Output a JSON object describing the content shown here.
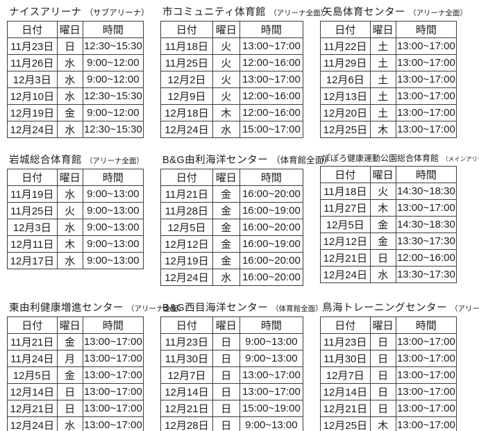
{
  "column_headers": {
    "date": "日付",
    "day": "曜日",
    "time": "時間"
  },
  "facilities": [
    {
      "name": "ナイスアリーナ",
      "note": "（サブアリーナ）",
      "rows": [
        {
          "date": "11月23日",
          "day": "日",
          "time": "12:30~15:30"
        },
        {
          "date": "11月26日",
          "day": "水",
          "time": "9:00~12:00"
        },
        {
          "date": "12月3日",
          "day": "水",
          "time": "9:00~12:00"
        },
        {
          "date": "12月10日",
          "day": "水",
          "time": "12:30~15:30"
        },
        {
          "date": "12月19日",
          "day": "金",
          "time": "9:00~12:00"
        },
        {
          "date": "12月24日",
          "day": "水",
          "time": "12:30~15:30"
        }
      ]
    },
    {
      "name": "市コミュニティ体育館",
      "note": "（アリーナ全面）",
      "rows": [
        {
          "date": "11月18日",
          "day": "火",
          "time": "13:00~17:00"
        },
        {
          "date": "11月25日",
          "day": "火",
          "time": "12:00~16:00"
        },
        {
          "date": "12月2日",
          "day": "火",
          "time": "13:00~17:00"
        },
        {
          "date": "12月9日",
          "day": "火",
          "time": "12:00~16:00"
        },
        {
          "date": "12月18日",
          "day": "木",
          "time": "12:00~16:00"
        },
        {
          "date": "12月24日",
          "day": "水",
          "time": "15:00~17:00"
        }
      ]
    },
    {
      "name": "矢島体育センター",
      "note": "（アリーナ全面）",
      "rows": [
        {
          "date": "11月22日",
          "day": "土",
          "time": "13:00~17:00"
        },
        {
          "date": "11月29日",
          "day": "土",
          "time": "13:00~17:00"
        },
        {
          "date": "12月6日",
          "day": "土",
          "time": "13:00~17:00"
        },
        {
          "date": "12月13日",
          "day": "土",
          "time": "13:00~17:00"
        },
        {
          "date": "12月20日",
          "day": "土",
          "time": "13:00~17:00"
        },
        {
          "date": "12月25日",
          "day": "木",
          "time": "13:00~17:00"
        }
      ]
    },
    {
      "name": "岩城総合体育館",
      "note": "（アリーナ全面）",
      "rows": [
        {
          "date": "11月19日",
          "day": "水",
          "time": "9:00~13:00"
        },
        {
          "date": "11月25日",
          "day": "火",
          "time": "9:00~13:00"
        },
        {
          "date": "12月3日",
          "day": "水",
          "time": "9:00~13:00"
        },
        {
          "date": "12月11日",
          "day": "木",
          "time": "9:00~13:00"
        },
        {
          "date": "12月17日",
          "day": "水",
          "time": "9:00~13:00"
        }
      ]
    },
    {
      "name": "B&G由利海洋センター",
      "note": "（体育館全面）",
      "rows": [
        {
          "date": "11月21日",
          "day": "金",
          "time": "16:00~20:00"
        },
        {
          "date": "11月28日",
          "day": "金",
          "time": "16:00~19:00"
        },
        {
          "date": "12月5日",
          "day": "金",
          "time": "16:00~20:00"
        },
        {
          "date": "12月12日",
          "day": "金",
          "time": "16:00~19:00"
        },
        {
          "date": "12月19日",
          "day": "金",
          "time": "16:00~20:00"
        },
        {
          "date": "12月24日",
          "day": "水",
          "time": "16:00~20:00"
        }
      ]
    },
    {
      "name": "ぽぽろ健康運動公園総合体育館",
      "note": "（メインアリーナ全面）",
      "rows": [
        {
          "date": "11月18日",
          "day": "火",
          "time": "14:30~18:30"
        },
        {
          "date": "11月27日",
          "day": "木",
          "time": "13:00~17:00"
        },
        {
          "date": "12月5日",
          "day": "金",
          "time": "14:30~18:30"
        },
        {
          "date": "12月12日",
          "day": "金",
          "time": "13:30~17:30"
        },
        {
          "date": "12月21日",
          "day": "日",
          "time": "12:00~16:00"
        },
        {
          "date": "12月24日",
          "day": "水",
          "time": "13:30~17:30"
        }
      ]
    },
    {
      "name": "東由利健康増進センター",
      "note": "（アリーナ全面）",
      "rows": [
        {
          "date": "11月21日",
          "day": "金",
          "time": "13:00~17:00"
        },
        {
          "date": "11月24日",
          "day": "月",
          "time": "13:00~17:00"
        },
        {
          "date": "12月5日",
          "day": "金",
          "time": "13:00~17:00"
        },
        {
          "date": "12月14日",
          "day": "日",
          "time": "13:00~17:00"
        },
        {
          "date": "12月21日",
          "day": "日",
          "time": "13:00~17:00"
        },
        {
          "date": "12月24日",
          "day": "水",
          "time": "13:00~17:00"
        }
      ]
    },
    {
      "name": "B&G西目海洋センター",
      "note": "（体育館全面）",
      "rows": [
        {
          "date": "11月23日",
          "day": "日",
          "time": "9:00~13:00"
        },
        {
          "date": "11月30日",
          "day": "日",
          "time": "9:00~13:00"
        },
        {
          "date": "12月7日",
          "day": "日",
          "time": "13:00~17:00"
        },
        {
          "date": "12月14日",
          "day": "日",
          "time": "13:00~17:00"
        },
        {
          "date": "12月21日",
          "day": "日",
          "time": "15:00~19:00"
        },
        {
          "date": "12月28日",
          "day": "日",
          "time": "9:00~13:00"
        }
      ]
    },
    {
      "name": "鳥海トレーニングセンター",
      "note": "（アリーナ全面）",
      "rows": [
        {
          "date": "11月23日",
          "day": "日",
          "time": "13:00~17:00"
        },
        {
          "date": "11月30日",
          "day": "日",
          "time": "13:00~17:00"
        },
        {
          "date": "12月7日",
          "day": "日",
          "time": "13:00~17:00"
        },
        {
          "date": "12月14日",
          "day": "日",
          "time": "13:00~17:00"
        },
        {
          "date": "12月21日",
          "day": "日",
          "time": "13:00~17:00"
        },
        {
          "date": "12月25日",
          "day": "木",
          "time": "13:00~17:00"
        }
      ]
    }
  ]
}
